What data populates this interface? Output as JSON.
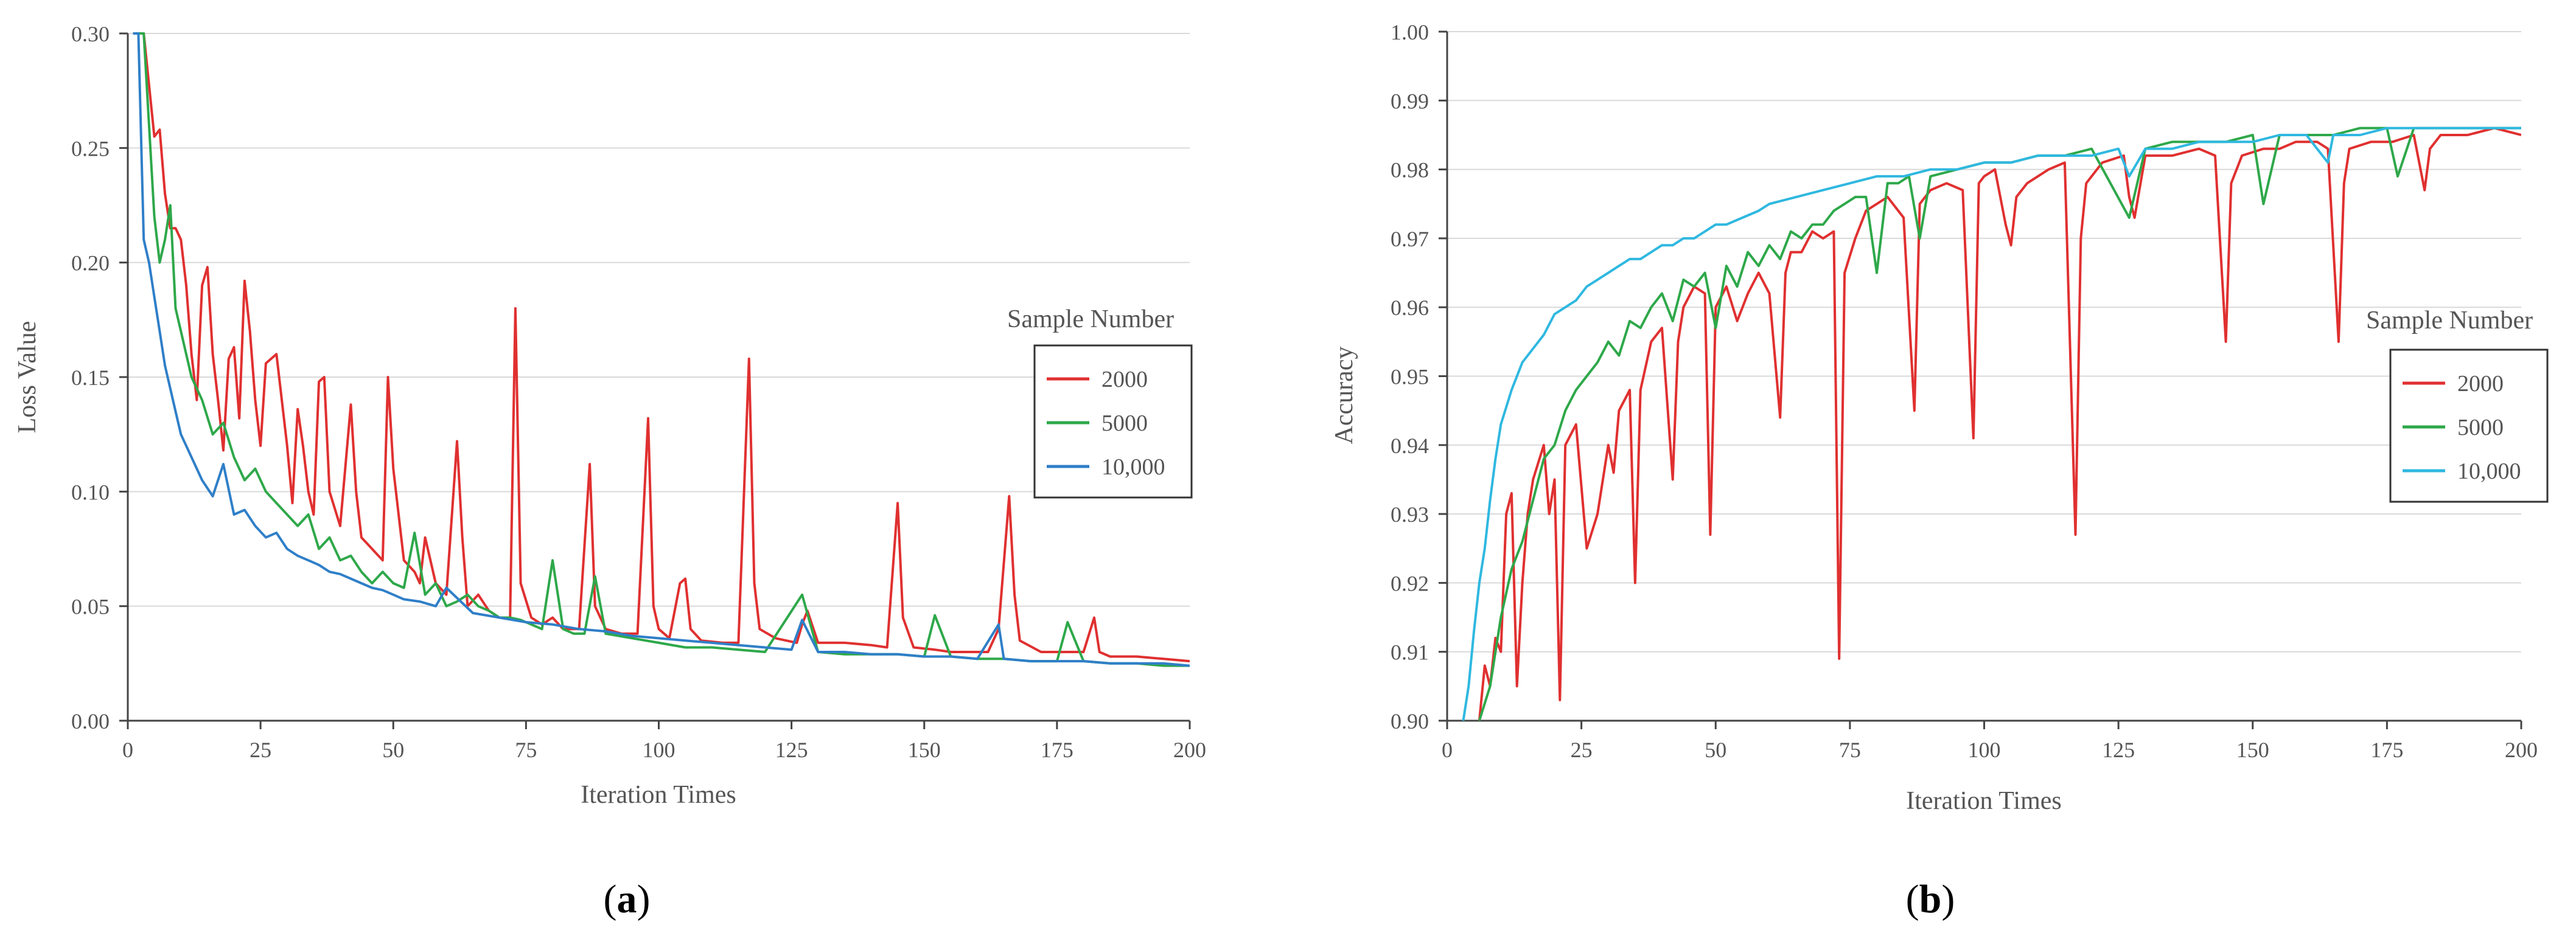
{
  "chart_data": [
    {
      "type": "line",
      "panel_label": "a",
      "xlabel": "Iteration Times",
      "ylabel": "Loss Value",
      "xlim": [
        0,
        200
      ],
      "ylim": [
        0.0,
        0.3
      ],
      "xticks": [
        0,
        25,
        50,
        75,
        100,
        125,
        150,
        175,
        200
      ],
      "xtick_labels": [
        "0",
        "25",
        "50",
        "75",
        "100",
        "125",
        "150",
        "175",
        "200"
      ],
      "yticks": [
        0.0,
        0.05,
        0.1,
        0.15,
        0.2,
        0.25,
        0.3
      ],
      "ytick_labels": [
        "0.00",
        "0.05",
        "0.10",
        "0.15",
        "0.20",
        "0.25",
        "0.30"
      ],
      "legend_title": "Sample Number",
      "legend_position": "right",
      "series": [
        {
          "name": "2000",
          "color": "#e03030",
          "x": [
            1,
            3,
            5,
            6,
            7,
            8,
            9,
            10,
            11,
            12,
            13,
            14,
            15,
            16,
            17,
            18,
            19,
            20,
            21,
            22,
            23,
            24,
            25,
            26,
            28,
            30,
            31,
            32,
            33,
            34,
            35,
            36,
            37,
            38,
            40,
            42,
            43,
            44,
            46,
            48,
            49,
            50,
            52,
            54,
            55,
            56,
            58,
            60,
            62,
            63,
            64,
            66,
            68,
            70,
            72,
            73,
            74,
            76,
            78,
            80,
            82,
            85,
            87,
            88,
            90,
            93,
            96,
            98,
            99,
            100,
            102,
            104,
            105,
            106,
            108,
            112,
            115,
            117,
            118,
            119,
            122,
            126,
            127,
            128,
            130,
            135,
            140,
            143,
            145,
            146,
            148,
            152,
            155,
            158,
            162,
            164,
            166,
            167,
            168,
            172,
            176,
            180,
            182,
            183,
            185,
            190,
            195,
            200
          ],
          "y": [
            0.3,
            0.3,
            0.255,
            0.258,
            0.23,
            0.215,
            0.215,
            0.21,
            0.19,
            0.16,
            0.14,
            0.19,
            0.198,
            0.16,
            0.14,
            0.118,
            0.158,
            0.163,
            0.132,
            0.192,
            0.17,
            0.14,
            0.12,
            0.156,
            0.16,
            0.12,
            0.095,
            0.136,
            0.12,
            0.1,
            0.09,
            0.148,
            0.15,
            0.1,
            0.085,
            0.138,
            0.1,
            0.08,
            0.075,
            0.07,
            0.15,
            0.11,
            0.07,
            0.065,
            0.06,
            0.08,
            0.06,
            0.055,
            0.122,
            0.08,
            0.05,
            0.055,
            0.048,
            0.045,
            0.045,
            0.18,
            0.06,
            0.045,
            0.042,
            0.045,
            0.04,
            0.04,
            0.112,
            0.05,
            0.04,
            0.038,
            0.038,
            0.132,
            0.05,
            0.04,
            0.036,
            0.06,
            0.062,
            0.04,
            0.035,
            0.034,
            0.034,
            0.158,
            0.06,
            0.04,
            0.036,
            0.034,
            0.042,
            0.048,
            0.034,
            0.034,
            0.033,
            0.032,
            0.095,
            0.045,
            0.032,
            0.031,
            0.03,
            0.03,
            0.03,
            0.04,
            0.098,
            0.055,
            0.035,
            0.03,
            0.03,
            0.03,
            0.045,
            0.03,
            0.028,
            0.028,
            0.027,
            0.026
          ]
        },
        {
          "name": "5000",
          "color": "#2ea84a",
          "x": [
            1,
            3,
            5,
            6,
            7,
            8,
            9,
            10,
            12,
            14,
            16,
            18,
            20,
            22,
            24,
            26,
            28,
            30,
            32,
            34,
            36,
            38,
            40,
            42,
            44,
            46,
            48,
            50,
            52,
            54,
            56,
            58,
            60,
            62,
            64,
            66,
            68,
            70,
            72,
            74,
            76,
            78,
            80,
            82,
            84,
            86,
            88,
            90,
            95,
            100,
            105,
            110,
            115,
            120,
            127,
            130,
            135,
            140,
            145,
            150,
            152,
            155,
            160,
            165,
            170,
            175,
            177,
            180,
            185,
            190,
            195,
            200
          ],
          "y": [
            0.3,
            0.3,
            0.22,
            0.2,
            0.21,
            0.225,
            0.18,
            0.17,
            0.15,
            0.14,
            0.125,
            0.13,
            0.115,
            0.105,
            0.11,
            0.1,
            0.095,
            0.09,
            0.085,
            0.09,
            0.075,
            0.08,
            0.07,
            0.072,
            0.065,
            0.06,
            0.065,
            0.06,
            0.058,
            0.082,
            0.055,
            0.06,
            0.05,
            0.052,
            0.055,
            0.05,
            0.048,
            0.045,
            0.045,
            0.044,
            0.042,
            0.04,
            0.07,
            0.04,
            0.038,
            0.038,
            0.063,
            0.038,
            0.036,
            0.034,
            0.032,
            0.032,
            0.031,
            0.03,
            0.055,
            0.03,
            0.029,
            0.029,
            0.029,
            0.028,
            0.046,
            0.028,
            0.027,
            0.027,
            0.026,
            0.026,
            0.043,
            0.026,
            0.025,
            0.025,
            0.024,
            0.024
          ]
        },
        {
          "name": "10,000",
          "color": "#2f7fc8",
          "x": [
            1,
            2,
            3,
            4,
            5,
            6,
            7,
            8,
            9,
            10,
            12,
            14,
            16,
            18,
            20,
            22,
            24,
            26,
            28,
            30,
            32,
            34,
            36,
            38,
            40,
            42,
            44,
            46,
            48,
            50,
            52,
            55,
            58,
            60,
            65,
            70,
            75,
            80,
            85,
            90,
            95,
            100,
            105,
            110,
            115,
            120,
            125,
            127,
            130,
            135,
            140,
            145,
            150,
            155,
            160,
            164,
            165,
            170,
            175,
            180,
            185,
            190,
            195,
            200
          ],
          "y": [
            0.3,
            0.3,
            0.21,
            0.2,
            0.185,
            0.17,
            0.155,
            0.145,
            0.135,
            0.125,
            0.115,
            0.105,
            0.098,
            0.112,
            0.09,
            0.092,
            0.085,
            0.08,
            0.082,
            0.075,
            0.072,
            0.07,
            0.068,
            0.065,
            0.064,
            0.062,
            0.06,
            0.058,
            0.057,
            0.055,
            0.053,
            0.052,
            0.05,
            0.058,
            0.047,
            0.045,
            0.043,
            0.042,
            0.04,
            0.039,
            0.037,
            0.036,
            0.035,
            0.034,
            0.033,
            0.032,
            0.031,
            0.044,
            0.03,
            0.03,
            0.029,
            0.029,
            0.028,
            0.028,
            0.027,
            0.042,
            0.027,
            0.026,
            0.026,
            0.026,
            0.025,
            0.025,
            0.025,
            0.024
          ]
        }
      ]
    },
    {
      "type": "line",
      "panel_label": "b",
      "xlabel": "Iteration Times",
      "ylabel": "Accuracy",
      "xlim": [
        0,
        200
      ],
      "ylim": [
        0.9,
        1.0
      ],
      "xticks": [
        0,
        25,
        50,
        75,
        100,
        125,
        150,
        175,
        200
      ],
      "xtick_labels": [
        "0",
        "25",
        "50",
        "75",
        "100",
        "125",
        "150",
        "175",
        "200"
      ],
      "yticks": [
        0.9,
        0.91,
        0.92,
        0.93,
        0.94,
        0.95,
        0.96,
        0.97,
        0.98,
        0.99,
        1.0
      ],
      "ytick_labels": [
        "0.90",
        "0.91",
        "0.92",
        "0.93",
        "0.94",
        "0.95",
        "0.96",
        "0.97",
        "0.98",
        "0.99",
        "1.00"
      ],
      "legend_title": "Sample Number",
      "legend_position": "right",
      "series": [
        {
          "name": "2000",
          "color": "#e03030",
          "x": [
            6,
            7,
            8,
            9,
            10,
            11,
            12,
            13,
            14,
            15,
            16,
            18,
            19,
            20,
            21,
            22,
            24,
            26,
            28,
            30,
            31,
            32,
            34,
            35,
            36,
            38,
            40,
            42,
            43,
            44,
            46,
            48,
            49,
            50,
            52,
            54,
            56,
            58,
            60,
            62,
            63,
            64,
            66,
            68,
            70,
            72,
            73,
            74,
            76,
            78,
            80,
            82,
            85,
            87,
            88,
            90,
            93,
            96,
            98,
            99,
            100,
            102,
            104,
            105,
            106,
            108,
            112,
            115,
            117,
            118,
            119,
            122,
            126,
            127,
            128,
            130,
            135,
            140,
            143,
            145,
            146,
            148,
            152,
            155,
            158,
            162,
            164,
            166,
            167,
            168,
            172,
            176,
            180,
            182,
            183,
            185,
            190,
            195,
            200
          ],
          "y": [
            0.9,
            0.908,
            0.905,
            0.912,
            0.91,
            0.93,
            0.933,
            0.905,
            0.92,
            0.93,
            0.935,
            0.94,
            0.93,
            0.935,
            0.903,
            0.94,
            0.943,
            0.925,
            0.93,
            0.94,
            0.936,
            0.945,
            0.948,
            0.92,
            0.948,
            0.955,
            0.957,
            0.935,
            0.955,
            0.96,
            0.963,
            0.962,
            0.927,
            0.96,
            0.963,
            0.958,
            0.962,
            0.965,
            0.962,
            0.944,
            0.965,
            0.968,
            0.968,
            0.971,
            0.97,
            0.971,
            0.909,
            0.965,
            0.97,
            0.974,
            0.975,
            0.976,
            0.973,
            0.945,
            0.975,
            0.977,
            0.978,
            0.977,
            0.941,
            0.978,
            0.979,
            0.98,
            0.972,
            0.969,
            0.976,
            0.978,
            0.98,
            0.981,
            0.927,
            0.97,
            0.978,
            0.981,
            0.982,
            0.976,
            0.973,
            0.982,
            0.982,
            0.983,
            0.982,
            0.955,
            0.978,
            0.982,
            0.983,
            0.983,
            0.984,
            0.984,
            0.983,
            0.955,
            0.978,
            0.983,
            0.984,
            0.984,
            0.985,
            0.977,
            0.983,
            0.985,
            0.985,
            0.986,
            0.985
          ]
        },
        {
          "name": "5000",
          "color": "#2ea84a",
          "x": [
            6,
            8,
            10,
            12,
            14,
            16,
            18,
            20,
            22,
            24,
            26,
            28,
            30,
            32,
            34,
            36,
            38,
            40,
            42,
            44,
            46,
            48,
            50,
            52,
            54,
            56,
            58,
            60,
            62,
            64,
            66,
            68,
            70,
            72,
            74,
            76,
            78,
            80,
            82,
            84,
            86,
            88,
            90,
            95,
            100,
            105,
            110,
            115,
            120,
            127,
            130,
            135,
            140,
            145,
            150,
            152,
            155,
            160,
            165,
            170,
            175,
            177,
            180,
            185,
            190,
            195,
            200
          ],
          "y": [
            0.9,
            0.905,
            0.915,
            0.922,
            0.926,
            0.932,
            0.938,
            0.94,
            0.945,
            0.948,
            0.95,
            0.952,
            0.955,
            0.953,
            0.958,
            0.957,
            0.96,
            0.962,
            0.958,
            0.964,
            0.963,
            0.965,
            0.957,
            0.966,
            0.963,
            0.968,
            0.966,
            0.969,
            0.967,
            0.971,
            0.97,
            0.972,
            0.972,
            0.974,
            0.975,
            0.976,
            0.976,
            0.965,
            0.978,
            0.978,
            0.979,
            0.97,
            0.979,
            0.98,
            0.981,
            0.981,
            0.982,
            0.982,
            0.983,
            0.973,
            0.983,
            0.984,
            0.984,
            0.984,
            0.985,
            0.975,
            0.985,
            0.985,
            0.985,
            0.986,
            0.986,
            0.979,
            0.986,
            0.986,
            0.986,
            0.986,
            0.986
          ]
        },
        {
          "name": "10,000",
          "color": "#2fb8e0",
          "x": [
            3,
            4,
            5,
            6,
            7,
            8,
            9,
            10,
            12,
            14,
            16,
            18,
            20,
            22,
            24,
            26,
            28,
            30,
            32,
            34,
            36,
            38,
            40,
            42,
            44,
            46,
            48,
            50,
            52,
            55,
            58,
            60,
            65,
            70,
            75,
            80,
            85,
            90,
            95,
            100,
            105,
            110,
            115,
            120,
            125,
            127,
            130,
            135,
            140,
            145,
            150,
            155,
            160,
            164,
            165,
            170,
            175,
            180,
            185,
            190,
            195,
            200
          ],
          "y": [
            0.9,
            0.905,
            0.913,
            0.92,
            0.925,
            0.932,
            0.938,
            0.943,
            0.948,
            0.952,
            0.954,
            0.956,
            0.959,
            0.96,
            0.961,
            0.963,
            0.964,
            0.965,
            0.966,
            0.967,
            0.967,
            0.968,
            0.969,
            0.969,
            0.97,
            0.97,
            0.971,
            0.972,
            0.972,
            0.973,
            0.974,
            0.975,
            0.976,
            0.977,
            0.978,
            0.979,
            0.979,
            0.98,
            0.98,
            0.981,
            0.981,
            0.982,
            0.982,
            0.982,
            0.983,
            0.979,
            0.983,
            0.983,
            0.984,
            0.984,
            0.984,
            0.985,
            0.985,
            0.981,
            0.985,
            0.985,
            0.986,
            0.986,
            0.986,
            0.986,
            0.986,
            0.986
          ]
        }
      ]
    }
  ]
}
